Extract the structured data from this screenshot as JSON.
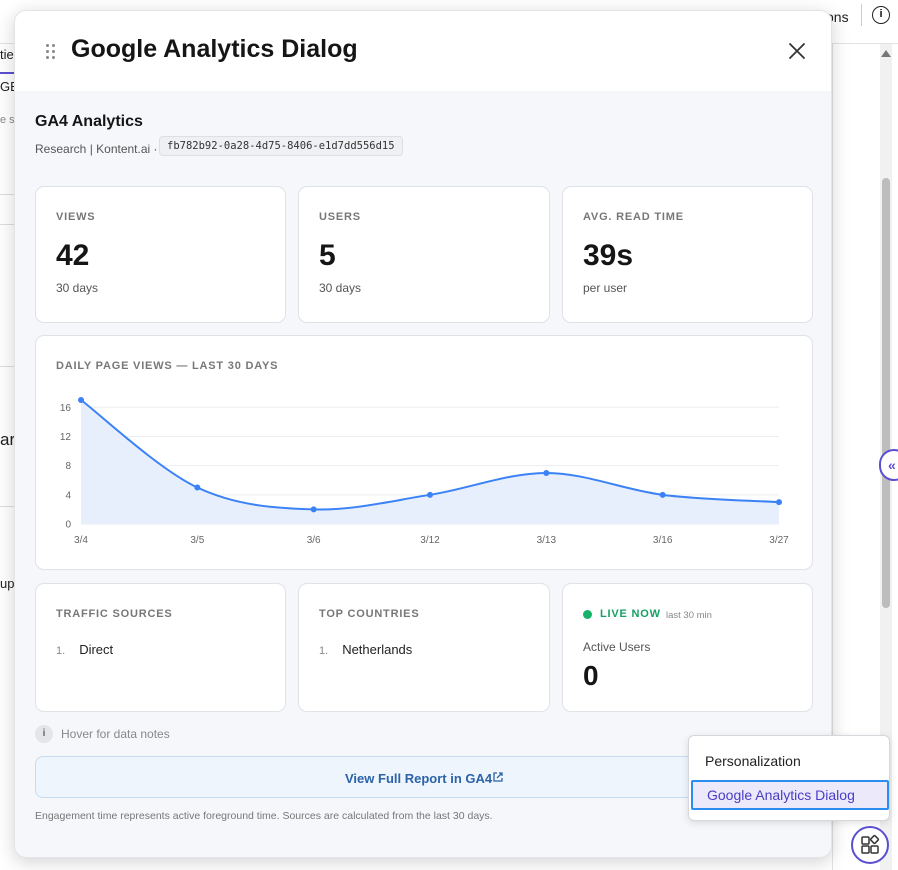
{
  "background": {
    "topbar_fragment_1": "…",
    "topbar_fragment_2": "…",
    "topbar_fragment_3": "ons",
    "info_icon_text": "i",
    "left_fragments": [
      "tie",
      "GE",
      "e s",
      "ar",
      "up"
    ]
  },
  "dialog": {
    "title": "Google Analytics Dialog",
    "icons": {
      "drag": "drag-handle-icon",
      "close": "close-icon"
    }
  },
  "ga": {
    "title": "GA4 Analytics",
    "subtitle": "Research | Kontent.ai ·",
    "property_id": "fb782b92-0a28-4d75-8406-e1d7dd556d15"
  },
  "stats": [
    {
      "label": "VIEWS",
      "value": "42",
      "caption": "30 days"
    },
    {
      "label": "USERS",
      "value": "5",
      "caption": "30 days"
    },
    {
      "label": "AVG. READ TIME",
      "value": "39s",
      "caption": "per user"
    }
  ],
  "chart_data": {
    "type": "area",
    "title": "DAILY PAGE VIEWS — LAST 30 DAYS",
    "categories": [
      "3/4",
      "3/5",
      "3/6",
      "3/12",
      "3/13",
      "3/16",
      "3/27"
    ],
    "values": [
      17,
      5,
      2,
      4,
      7,
      4,
      3
    ],
    "yticks": [
      0,
      4,
      8,
      12,
      16
    ],
    "ylim": [
      0,
      17
    ],
    "grid": true,
    "color": "#3b82f6",
    "fill": "#e8effc"
  },
  "traffic": {
    "label": "TRAFFIC SOURCES",
    "items": [
      {
        "rank": "1.",
        "name": "Direct"
      }
    ]
  },
  "countries": {
    "label": "TOP COUNTRIES",
    "items": [
      {
        "rank": "1.",
        "name": "Netherlands"
      }
    ]
  },
  "live": {
    "label": "LIVE NOW",
    "window": "last 30 min",
    "caption": "Active Users",
    "value": "0",
    "color": "#17b26a"
  },
  "hint": {
    "icon": "i",
    "text": "Hover for data notes"
  },
  "report_button": {
    "label": "View Full Report in GA4",
    "icon": "external-link-icon"
  },
  "footnote": "Engagement time represents active foreground time. Sources are calculated from the last 30 days.",
  "menu": {
    "items": [
      "Personalization",
      "Google Analytics Dialog"
    ],
    "selected": "Google Analytics Dialog"
  },
  "bottom_button": {
    "icon": "apps-icon"
  },
  "colors": {
    "accent": "#5b4fd1",
    "link": "#2b62a8",
    "live": "#17b26a"
  }
}
